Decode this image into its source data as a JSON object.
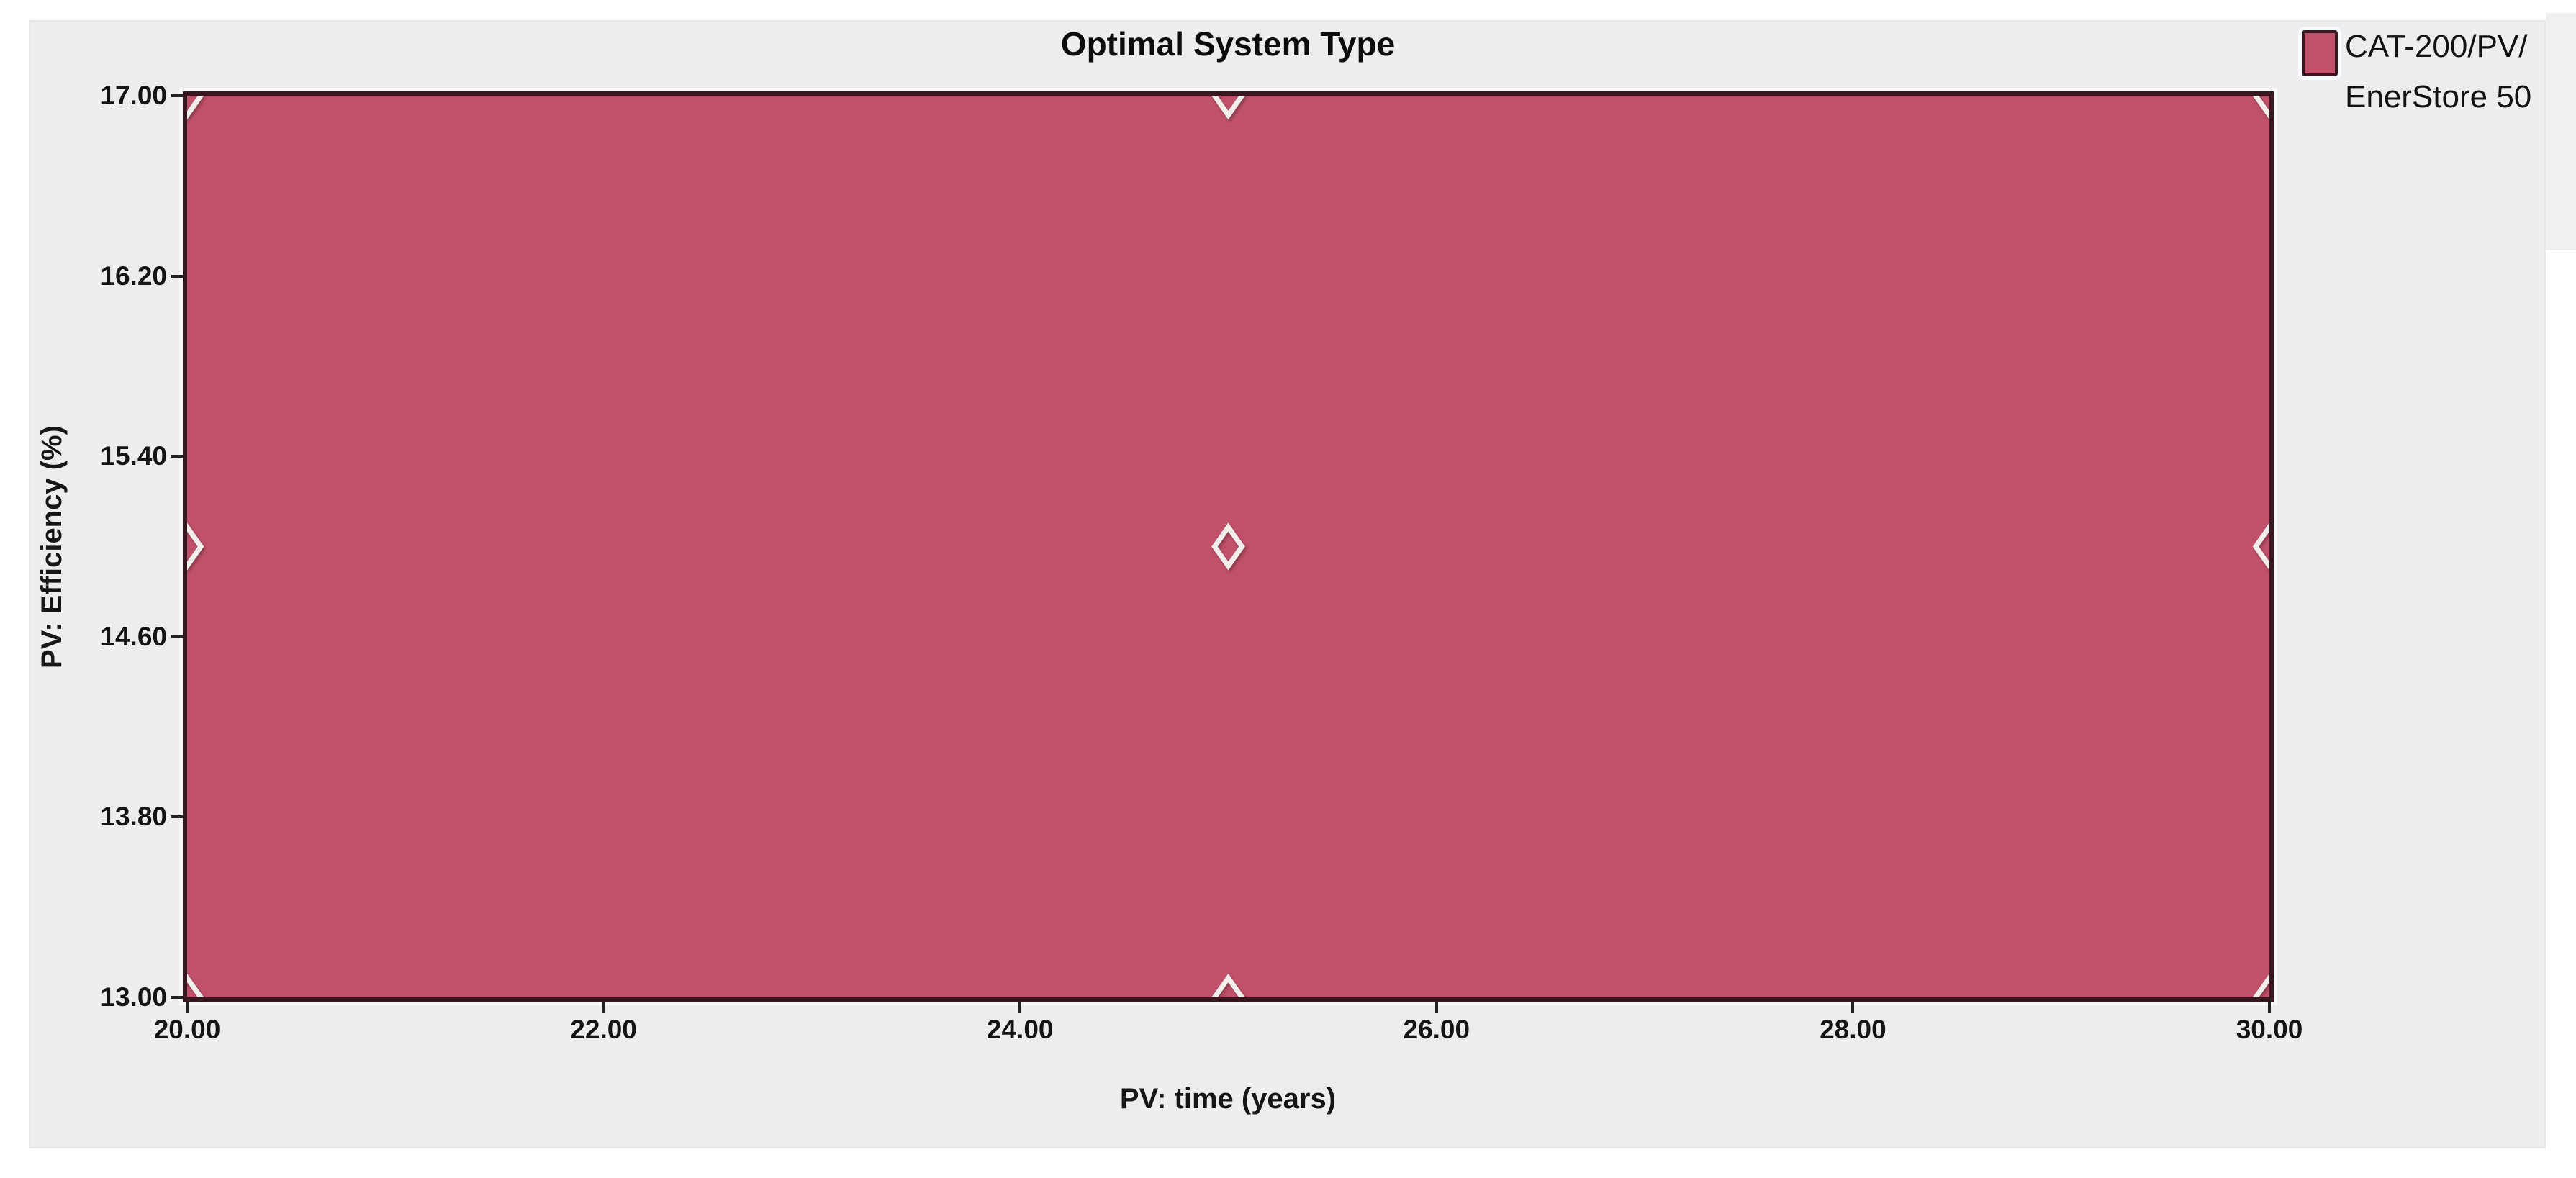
{
  "chart_data": {
    "type": "area",
    "title": "Optimal System Type",
    "xlabel": "PV: time (years)",
    "ylabel": "PV: Efficiency (%)",
    "xlim": [
      20,
      30
    ],
    "ylim": [
      13,
      17
    ],
    "x_ticks": [
      20,
      22,
      24,
      26,
      28,
      30
    ],
    "x_tick_labels": [
      "20.00",
      "22.00",
      "24.00",
      "26.00",
      "28.00",
      "30.00"
    ],
    "y_ticks": [
      13,
      13.8,
      14.6,
      15.4,
      16.2,
      17
    ],
    "y_tick_labels": [
      "13.00",
      "13.80",
      "14.60",
      "15.40",
      "16.20",
      "17.00"
    ],
    "grid": false,
    "legend_position": "top-right",
    "series": [
      {
        "name": "CAT-200/PV/EnerStore 50",
        "type": "optimal-system-region",
        "color": "#c1516a",
        "x_range": [
          20,
          30
        ],
        "y_range": [
          13,
          17
        ]
      }
    ],
    "sensitivity_points": {
      "marker": "diamond",
      "x": [
        20,
        25,
        30
      ],
      "y": [
        13,
        15,
        17
      ]
    }
  },
  "legend": {
    "lines": [
      "CAT-200/PV/",
      "EnerStore 50"
    ],
    "swatch_color": "#c1516a",
    "swatch_border": "#381820"
  },
  "colors": {
    "page_background": "#ffffff",
    "panel_background": "#ecedec",
    "region_fill": "#c1516a",
    "plot_border": "#381820",
    "marker_stroke": "#f2eeec",
    "text": "#111111"
  }
}
